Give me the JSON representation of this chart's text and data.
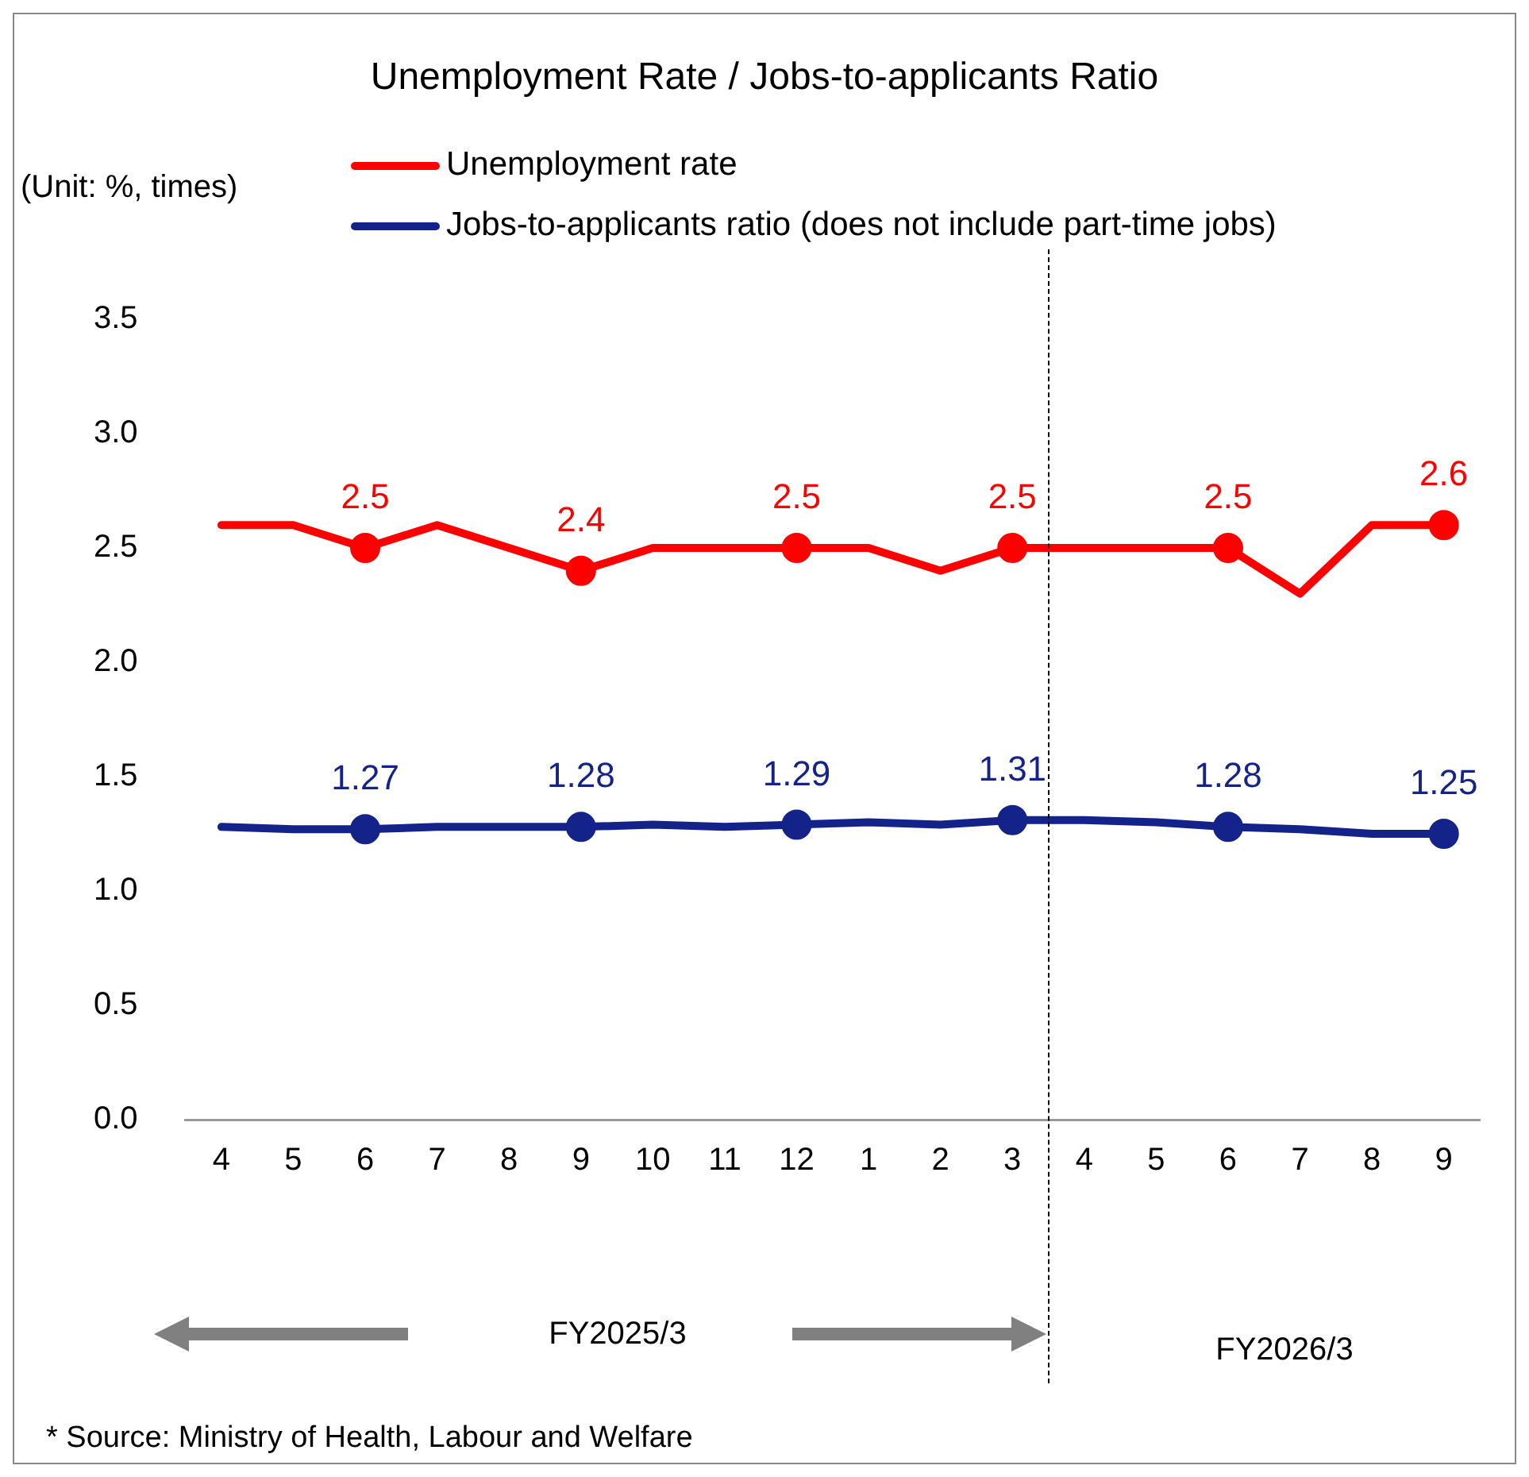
{
  "chart_data": {
    "type": "line",
    "title": "Unemployment Rate / Jobs-to-applicants Ratio",
    "ylabel": "(Unit: %, times)",
    "categories": [
      "4",
      "5",
      "6",
      "7",
      "8",
      "9",
      "10",
      "11",
      "12",
      "1",
      "2",
      "3",
      "4",
      "5",
      "6",
      "7",
      "8",
      "9"
    ],
    "series": [
      {
        "name": "Unemployment rate",
        "color": "#ff0000",
        "values": [
          2.6,
          2.6,
          2.5,
          2.6,
          2.5,
          2.4,
          2.5,
          2.5,
          2.5,
          2.5,
          2.4,
          2.5,
          2.5,
          2.5,
          2.5,
          2.3,
          2.6,
          2.6
        ],
        "value_labels": [
          null,
          null,
          "2.5",
          null,
          null,
          "2.4",
          null,
          null,
          "2.5",
          null,
          null,
          "2.5",
          null,
          null,
          "2.5",
          null,
          null,
          "2.6"
        ]
      },
      {
        "name": "Jobs-to-applicants ratio (does not include part-time jobs)",
        "color": "#13238a",
        "values": [
          1.28,
          1.27,
          1.27,
          1.28,
          1.28,
          1.28,
          1.29,
          1.28,
          1.29,
          1.3,
          1.29,
          1.31,
          1.31,
          1.3,
          1.28,
          1.27,
          1.25,
          1.25
        ],
        "value_labels": [
          null,
          null,
          "1.27",
          null,
          null,
          "1.28",
          null,
          null,
          "1.29",
          null,
          null,
          "1.31",
          null,
          null,
          "1.28",
          null,
          null,
          "1.25"
        ]
      }
    ],
    "ylim": [
      0,
      3.5
    ],
    "yticks": [
      {
        "value": 0,
        "label": "0.0"
      },
      0.5,
      {
        "value": 1,
        "label": "1.0"
      },
      1.5,
      {
        "value": 2,
        "label": "2.0"
      },
      2.5,
      {
        "value": 3,
        "label": "3.0"
      },
      3.5
    ],
    "grid": false,
    "legend": "top",
    "line_style": "solid",
    "annotations": [
      "FY2025/3",
      "FY2026/3",
      "* Source: Ministry of Health, Labour and Welfare"
    ]
  }
}
